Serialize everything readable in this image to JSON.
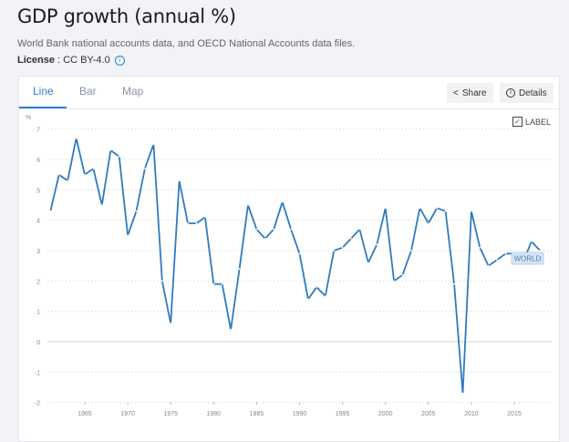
{
  "header": {
    "title": "GDP growth (annual %)",
    "source": "World Bank national accounts data, and OECD National Accounts data files.",
    "license_label": "License",
    "license_value": " : CC BY-4.0",
    "info_icon": "info-icon"
  },
  "tabs": [
    {
      "label": "Line",
      "active": true
    },
    {
      "label": "Bar",
      "active": false
    },
    {
      "label": "Map",
      "active": false
    }
  ],
  "toolbar": {
    "share": "Share",
    "details": "Details",
    "label_toggle": "LABEL",
    "label_checked": true
  },
  "chart_data": {
    "type": "line",
    "ylabel": "%",
    "ylim": [
      -2,
      7
    ],
    "yticks": [
      "7",
      "6",
      "5",
      "4",
      "3",
      "2",
      "1",
      "0",
      "-1",
      "-2"
    ],
    "xticks": [
      "1965",
      "1970",
      "1975",
      "1980",
      "1985",
      "1990",
      "1995",
      "2000",
      "2005",
      "2010",
      "2015"
    ],
    "grid": true,
    "line_color": "#2f7bbf",
    "x": [
      1961,
      1962,
      1963,
      1964,
      1965,
      1966,
      1967,
      1968,
      1969,
      1970,
      1971,
      1972,
      1973,
      1974,
      1975,
      1976,
      1977,
      1978,
      1979,
      1980,
      1981,
      1982,
      1983,
      1984,
      1985,
      1986,
      1987,
      1988,
      1989,
      1990,
      1991,
      1992,
      1993,
      1994,
      1995,
      1996,
      1997,
      1998,
      1999,
      2000,
      2001,
      2002,
      2003,
      2004,
      2005,
      2006,
      2007,
      2008,
      2009,
      2010,
      2011,
      2012,
      2013,
      2014,
      2015,
      2016,
      2017,
      2018
    ],
    "series": [
      {
        "name": "WORLD",
        "values": [
          4.3,
          5.5,
          5.3,
          6.7,
          5.5,
          5.7,
          4.5,
          6.3,
          6.1,
          3.5,
          4.3,
          5.7,
          6.5,
          2.0,
          0.6,
          5.3,
          3.9,
          3.9,
          4.1,
          1.9,
          1.9,
          0.4,
          2.4,
          4.5,
          3.7,
          3.4,
          3.7,
          4.6,
          3.7,
          2.9,
          1.4,
          1.8,
          1.5,
          3.0,
          3.1,
          3.4,
          3.7,
          2.6,
          3.2,
          4.4,
          2.0,
          2.2,
          3.0,
          4.4,
          3.9,
          4.4,
          4.3,
          1.9,
          -1.7,
          4.3,
          3.1,
          2.5,
          2.7,
          2.9,
          2.9,
          2.6,
          3.3,
          3.0
        ]
      }
    ]
  }
}
